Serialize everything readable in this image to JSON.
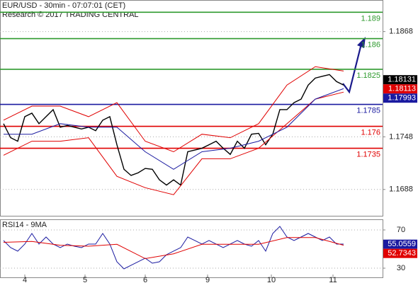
{
  "header": {
    "title": "EUR/USD - 30min - 07:07:01 (CET)",
    "subtitle": "Research © 2017 TRADING CENTRAL"
  },
  "chart_data": [
    {
      "type": "line",
      "xlim": [
        -0.5,
        53.5
      ],
      "xticks": [
        {
          "value": 3,
          "label": "4"
        },
        {
          "value": 11.5,
          "label": "5"
        },
        {
          "value": 20,
          "label": "6"
        },
        {
          "value": 28.8,
          "label": "9"
        },
        {
          "value": 37.8,
          "label": "10"
        },
        {
          "value": 46.5,
          "label": "11"
        }
      ],
      "ylim": [
        1.1658,
        1.1904
      ],
      "yticks": [
        1.1688,
        1.1748,
        1.1868
      ],
      "grid": true,
      "series": [
        {
          "color": "#000000",
          "x": [
            0,
            1,
            2,
            3,
            4,
            5,
            6,
            7,
            8,
            9,
            10,
            11,
            12,
            13,
            14,
            15,
            16,
            17,
            18,
            19,
            20,
            21,
            22,
            23,
            24,
            25,
            26,
            27,
            28,
            29,
            30,
            31,
            32,
            33,
            34,
            35,
            36,
            37,
            38,
            39,
            40,
            41,
            42,
            43,
            44,
            45,
            46,
            47,
            48
          ],
          "values": [
            1.1763,
            1.1747,
            1.1743,
            1.1771,
            1.1775,
            1.1763,
            1.1771,
            1.1779,
            1.1759,
            1.1761,
            1.1759,
            1.1757,
            1.1759,
            1.1755,
            1.1767,
            1.1771,
            1.1739,
            1.1711,
            1.1704,
            1.1707,
            1.1712,
            1.1711,
            1.1699,
            1.1693,
            1.1699,
            1.1693,
            1.1731,
            1.1733,
            1.1735,
            1.1739,
            1.1743,
            1.1735,
            1.1728,
            1.1743,
            1.1735,
            1.1751,
            1.1752,
            1.1739,
            1.1751,
            1.1779,
            1.1779,
            1.1787,
            1.1791,
            1.1807,
            1.1815,
            1.1817,
            1.1819,
            1.1811,
            1.1807
          ]
        },
        {
          "color": "#e00000",
          "x": [
            0,
            4,
            8,
            12,
            16,
            20,
            24,
            28,
            32,
            36,
            40,
            44,
            48
          ],
          "values": [
            1.1767,
            1.1783,
            1.1783,
            1.1771,
            1.1787,
            1.1743,
            1.1731,
            1.1751,
            1.1747,
            1.1763,
            1.1807,
            1.1828,
            1.1823
          ]
        },
        {
          "color": "#e00000",
          "x": [
            0,
            4,
            8,
            12,
            16,
            20,
            24,
            28,
            32,
            36,
            40,
            44,
            48
          ],
          "values": [
            1.1727,
            1.1743,
            1.1743,
            1.1747,
            1.1703,
            1.169,
            1.1682,
            1.1723,
            1.1723,
            1.1735,
            1.1763,
            1.1791,
            1.1799
          ]
        },
        {
          "color": "#1a1aa0",
          "x": [
            0,
            4,
            8,
            12,
            16,
            20,
            24,
            28,
            32,
            36,
            40,
            44,
            48
          ],
          "values": [
            1.1751,
            1.1751,
            1.1763,
            1.1759,
            1.1759,
            1.1731,
            1.1711,
            1.1731,
            1.1735,
            1.1743,
            1.1759,
            1.1791,
            1.1803
          ]
        }
      ],
      "levels": [
        {
          "value": 1.189,
          "color": "#2e9a2e"
        },
        {
          "value": 1.186,
          "color": "#2e9a2e"
        },
        {
          "value": 1.1825,
          "color": "#2e9a2e"
        },
        {
          "value": 1.1785,
          "color": "#1a1aa0"
        },
        {
          "value": 1.176,
          "color": "#e00000"
        },
        {
          "value": 1.1735,
          "color": "#e00000"
        }
      ],
      "price_tags": [
        {
          "value": 1.18131,
          "color": "#000000"
        },
        {
          "value": 1.18113,
          "color": "#e00000"
        },
        {
          "value": 1.17993,
          "color": "#1a1aa0"
        }
      ]
    },
    {
      "type": "line",
      "title": "RSI14 - 9MA",
      "ylim": [
        20.4,
        81.1
      ],
      "yticks": [
        30,
        70
      ],
      "grid": true,
      "series": [
        {
          "color": "#1a1aa0",
          "x": [
            0,
            1,
            2,
            3,
            4,
            5,
            6,
            7,
            8,
            9,
            10,
            11,
            12,
            13,
            14,
            15,
            16,
            17,
            18,
            19,
            20,
            21,
            22,
            23,
            24,
            25,
            26,
            27,
            28,
            29,
            30,
            31,
            32,
            33,
            34,
            35,
            36,
            37,
            38,
            39,
            40,
            41,
            42,
            43,
            44,
            45,
            46,
            47,
            48
          ],
          "values": [
            58.9,
            51.5,
            47.8,
            55.2,
            66.3,
            55.2,
            62.6,
            55.2,
            51.5,
            55.2,
            53,
            51.5,
            55.2,
            55.2,
            66.3,
            55.2,
            36.7,
            29.3,
            33,
            36.7,
            40.4,
            35.2,
            36.7,
            44.1,
            47.8,
            51.5,
            62.6,
            58.9,
            55.2,
            58.9,
            55.2,
            51.5,
            55.2,
            58.9,
            55.2,
            53,
            58.9,
            47.8,
            66.3,
            73.7,
            62.6,
            58.9,
            62.6,
            66.3,
            62.6,
            58.9,
            62.6,
            55.2,
            55.2
          ]
        },
        {
          "color": "#e00000",
          "x": [
            0,
            4,
            8,
            12,
            16,
            20,
            24,
            28,
            32,
            36,
            40,
            44,
            48
          ],
          "values": [
            57,
            58,
            54,
            53,
            55,
            40,
            45,
            55,
            55,
            55,
            62,
            62,
            54
          ]
        }
      ],
      "price_tags": [
        {
          "value": 55.0559,
          "color": "#1a1aa0"
        },
        {
          "value": 52.7343,
          "color": "#e00000"
        }
      ]
    }
  ]
}
